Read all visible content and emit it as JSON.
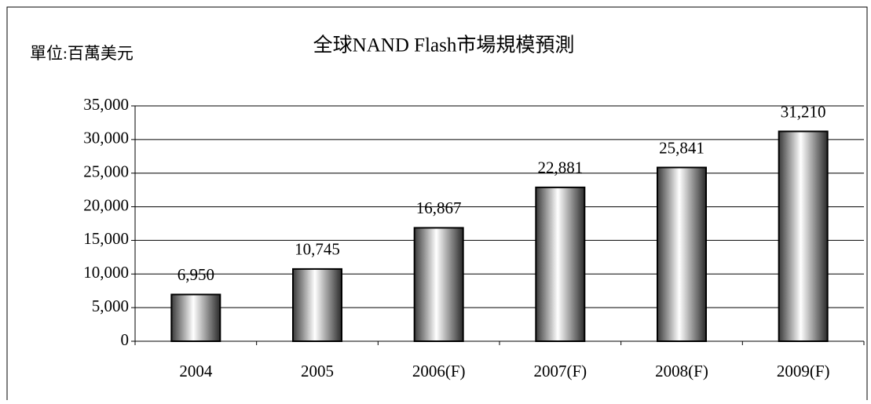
{
  "chart_data": {
    "type": "bar",
    "title": "全球NAND Flash市場規模預測",
    "unit_label": "單位:百萬美元",
    "categories": [
      "2004",
      "2005",
      "2006(F)",
      "2007(F)",
      "2008(F)",
      "2009(F)"
    ],
    "values": [
      6950,
      10745,
      16867,
      22881,
      25841,
      31210
    ],
    "value_labels": [
      "6,950",
      "10,745",
      "16,867",
      "22,881",
      "25,841",
      "31,210"
    ],
    "color": "#444444",
    "ylim": [
      0,
      35000
    ],
    "yticks": [
      0,
      {
        "value": 5000,
        "label": "5,000"
      },
      {
        "value": 10000,
        "label": "10,000"
      },
      {
        "value": 15000,
        "label": "15,000"
      },
      {
        "value": 20000,
        "label": "20,000"
      },
      {
        "value": 25000,
        "label": "25,000"
      },
      {
        "value": 30000,
        "label": "30,000"
      },
      {
        "value": 35000,
        "label": "35,000"
      }
    ],
    "grid": true
  }
}
